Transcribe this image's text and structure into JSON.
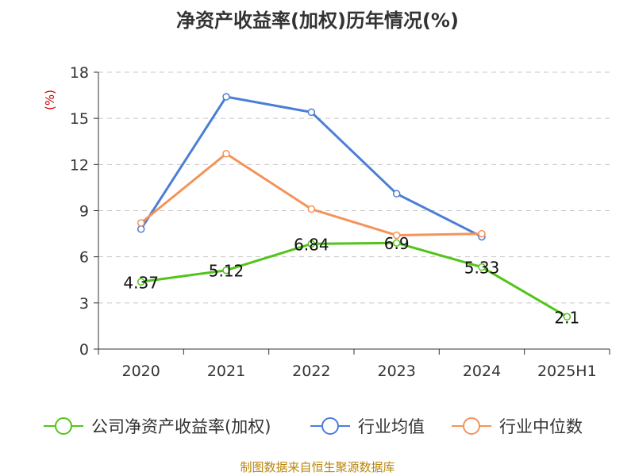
{
  "title": "净资产收益率(加权)历年情况(%)",
  "source": "制图数据来自恒生聚源数据库",
  "chart_data": {
    "type": "line",
    "categories": [
      "2020",
      "2021",
      "2022",
      "2023",
      "2024",
      "2025H1"
    ],
    "ylabel": "(%)",
    "ylim": [
      0,
      18
    ],
    "yticks": [
      0,
      3,
      6,
      9,
      12,
      15,
      18
    ],
    "grid": true,
    "legend_position": "bottom",
    "series": [
      {
        "name": "公司净资产收益率(加权)",
        "color": "#52c41a",
        "values": [
          4.37,
          5.12,
          6.84,
          6.9,
          5.33,
          2.1
        ],
        "labels": [
          "4.37",
          "5.12",
          "6.84",
          "6.9",
          "5.33",
          "2.1"
        ]
      },
      {
        "name": "行业均值",
        "color": "#4a7fd6",
        "values": [
          7.8,
          16.4,
          15.4,
          10.1,
          7.3,
          null
        ]
      },
      {
        "name": "行业中位数",
        "color": "#f4935a",
        "values": [
          8.2,
          12.7,
          9.1,
          7.4,
          7.5,
          null
        ]
      }
    ]
  }
}
